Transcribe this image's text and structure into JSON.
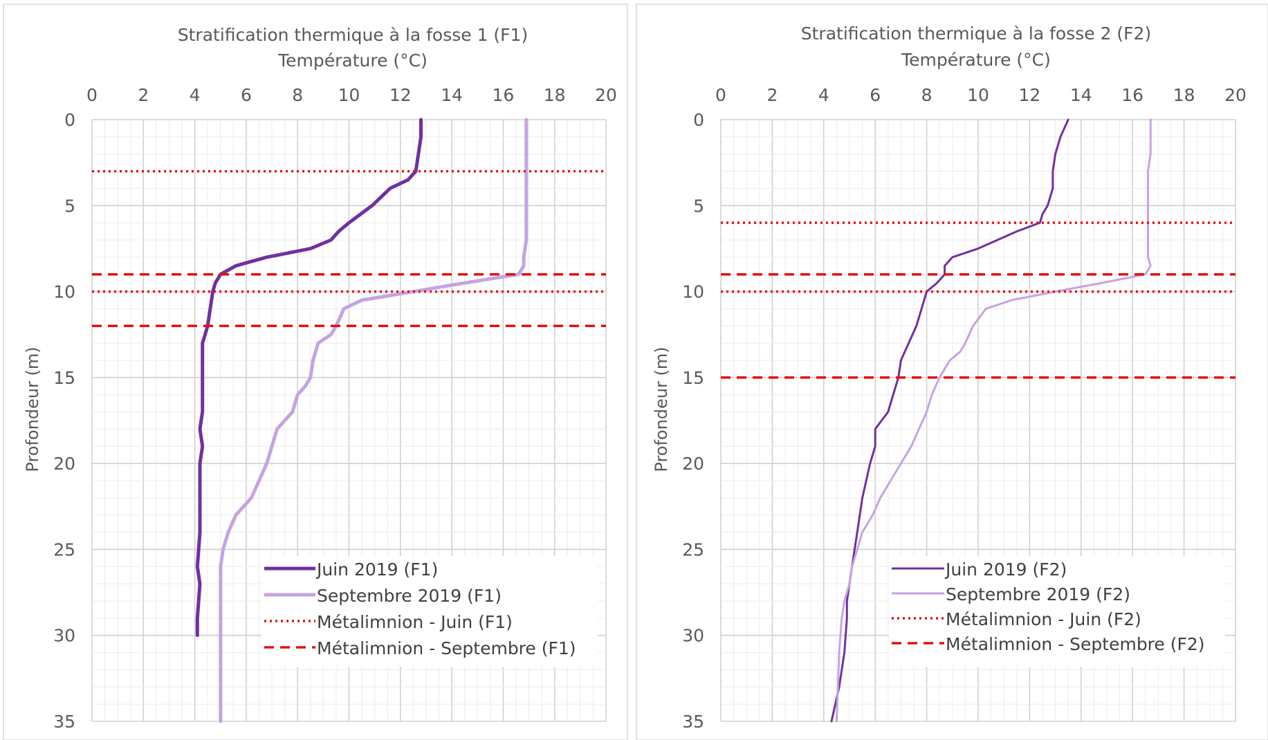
{
  "chart_data": [
    {
      "type": "line",
      "title": "Stratification thermique à la fosse 1 (F1)",
      "xlabel": "Température (°C)",
      "ylabel": "Profondeur (m)",
      "xlim": [
        0,
        20
      ],
      "ylim": [
        0,
        35
      ],
      "y_inverted": true,
      "x_ticks": [
        "0",
        "2",
        "4",
        "6",
        "8",
        "10",
        "12",
        "14",
        "16",
        "18",
        "20"
      ],
      "y_ticks": [
        "0",
        "5",
        "10",
        "15",
        "20",
        "25",
        "30",
        "35"
      ],
      "grid": true,
      "legend_position": "bottom-right",
      "series": [
        {
          "name": "Juin 2019 (F1)",
          "color": "#7030a0",
          "style": "solid",
          "width": "thick",
          "x": [
            12.8,
            12.8,
            12.7,
            12.6,
            12.3,
            11.6,
            10.9,
            10.0,
            9.6,
            9.3,
            8.5,
            6.8,
            5.6,
            5.0,
            4.8,
            4.7,
            4.6,
            4.5,
            4.4,
            4.3,
            4.3,
            4.3,
            4.3,
            4.2,
            4.3,
            4.2,
            4.2,
            4.2,
            4.2,
            4.1,
            4.2,
            4.1,
            4.1
          ],
          "y": [
            0,
            1,
            2,
            3,
            3.5,
            4,
            5,
            6,
            6.5,
            7,
            7.5,
            8,
            8.5,
            9,
            9.5,
            10,
            11,
            12,
            12.5,
            13,
            14,
            15,
            17,
            18,
            19,
            20,
            21,
            22,
            24,
            26,
            27,
            29,
            30
          ]
        },
        {
          "name": "Septembre 2019 (F1)",
          "color": "#c5a3e3",
          "style": "solid",
          "width": "thick",
          "x": [
            16.9,
            16.9,
            16.9,
            16.9,
            16.9,
            16.9,
            16.9,
            16.9,
            16.8,
            16.8,
            16.6,
            14.5,
            12.5,
            10.5,
            9.8,
            9.5,
            9.3,
            8.8,
            8.6,
            8.5,
            8.3,
            8.0,
            7.8,
            7.2,
            7.0,
            6.8,
            6.2,
            5.6,
            5.3,
            5.1,
            5.0,
            5.0,
            5.0,
            5.0
          ],
          "y": [
            0,
            1,
            2,
            3,
            4,
            5,
            6,
            7,
            8,
            8.5,
            9,
            9.5,
            10,
            10.5,
            11,
            12,
            12.5,
            13,
            14,
            15,
            15.5,
            16,
            17,
            18,
            19,
            20,
            22,
            23,
            24,
            25,
            26,
            28,
            30,
            35
          ]
        },
        {
          "name": "Métalimnion - Juin (F1)",
          "color": "#e31010",
          "style": "dotted",
          "y_values": [
            3,
            10
          ]
        },
        {
          "name": "Métalimnion - Septembre (F1)",
          "color": "#e31010",
          "style": "dashed",
          "y_values": [
            9,
            12
          ]
        }
      ]
    },
    {
      "type": "line",
      "title": "Stratification thermique à la fosse 2 (F2)",
      "xlabel": "Température (°C)",
      "ylabel": "Profondeur (m)",
      "xlim": [
        0,
        20
      ],
      "ylim": [
        0,
        35
      ],
      "y_inverted": true,
      "x_ticks": [
        "0",
        "2",
        "4",
        "6",
        "8",
        "10",
        "12",
        "14",
        "16",
        "18",
        "20"
      ],
      "y_ticks": [
        "0",
        "5",
        "10",
        "15",
        "20",
        "25",
        "30",
        "35"
      ],
      "grid": true,
      "legend_position": "bottom-right",
      "series": [
        {
          "name": "Juin 2019 (F2)",
          "color": "#7030a0",
          "style": "solid",
          "width": "thin",
          "x": [
            13.5,
            13.2,
            13.0,
            12.9,
            12.9,
            12.7,
            12.5,
            12.4,
            11.5,
            10.0,
            9.0,
            8.7,
            8.7,
            8.4,
            8.0,
            7.8,
            7.6,
            7.3,
            7.0,
            6.9,
            6.7,
            6.5,
            6.0,
            6.0,
            5.8,
            5.5,
            5.4,
            5.3,
            5.2,
            4.9,
            4.9,
            4.8,
            4.6,
            4.3
          ],
          "y": [
            0,
            1,
            2,
            3,
            4,
            5,
            5.5,
            6,
            6.5,
            7.5,
            8,
            8.5,
            9,
            9.5,
            10,
            11,
            12,
            13,
            14,
            15,
            16,
            17,
            18,
            19,
            20,
            22,
            23,
            24,
            25,
            28,
            29,
            31,
            33,
            35
          ]
        },
        {
          "name": "Septembre 2019 (F2)",
          "color": "#c5a3e3",
          "style": "solid",
          "width": "thin",
          "x": [
            16.7,
            16.7,
            16.7,
            16.6,
            16.6,
            16.6,
            16.6,
            16.6,
            16.6,
            16.7,
            16.5,
            14.8,
            13.0,
            11.3,
            10.3,
            9.8,
            9.5,
            9.3,
            8.9,
            8.5,
            8.2,
            8.0,
            7.7,
            7.4,
            7.0,
            6.6,
            6.2,
            5.9,
            5.5,
            5.3,
            5.1,
            5.0,
            4.8,
            4.7,
            4.6,
            4.5
          ],
          "y": [
            0,
            1,
            2,
            3,
            4,
            5,
            6,
            7,
            8,
            8.5,
            9,
            9.5,
            10,
            10.5,
            11,
            12,
            13,
            13.5,
            14,
            15,
            16,
            17,
            18,
            19,
            20,
            21,
            22,
            23,
            24,
            25,
            26,
            27,
            28,
            29,
            31,
            35
          ]
        },
        {
          "name": "Métalimnion - Juin (F2)",
          "color": "#e31010",
          "style": "dotted",
          "y_values": [
            6,
            10
          ]
        },
        {
          "name": "Métalimnion - Septembre (F2)",
          "color": "#e31010",
          "style": "dashed",
          "y_values": [
            9,
            15
          ]
        }
      ]
    }
  ]
}
